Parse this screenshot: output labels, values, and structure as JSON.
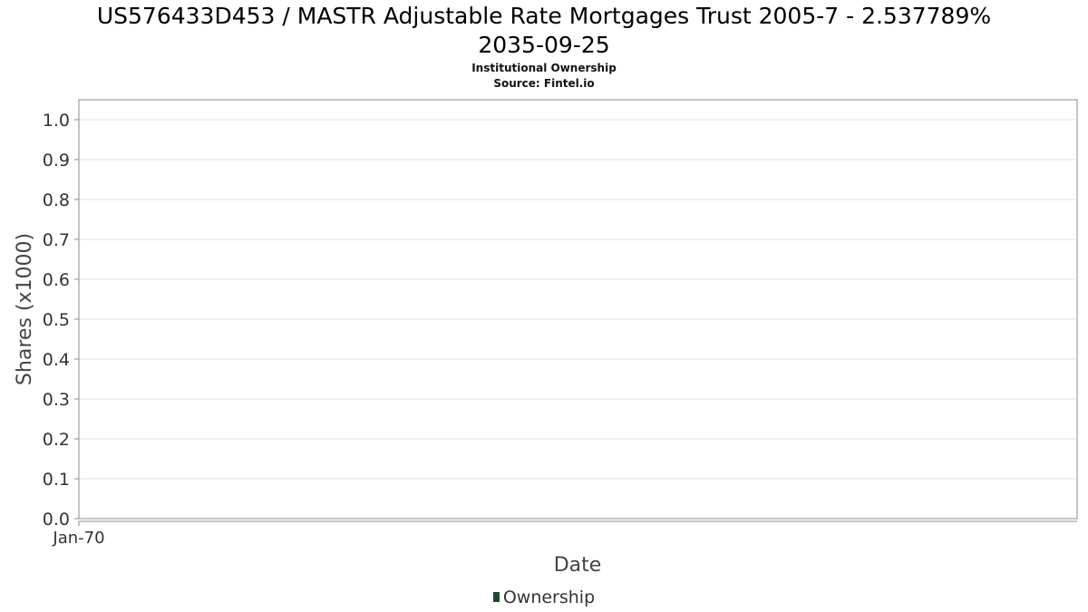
{
  "header": {
    "title_line1": "US576433D453 / MASTR Adjustable Rate Mortgages Trust 2005-7 - 2.537789%",
    "title_line2": "2035-09-25",
    "subtitle_line1": "Institutional Ownership",
    "subtitle_line2": "Source: Fintel.io"
  },
  "chart_data": {
    "type": "line",
    "title": "US576433D453 / MASTR Adjustable Rate Mortgages Trust 2005-7 - 2.537789% 2035-09-25",
    "subtitle": "Institutional Ownership\nSource: Fintel.io",
    "xlabel": "Date",
    "ylabel": "Shares (x1000)",
    "x_ticks": [
      "Jan-70"
    ],
    "y_ticks": [
      "0.0",
      "0.1",
      "0.2",
      "0.3",
      "0.4",
      "0.5",
      "0.6",
      "0.7",
      "0.8",
      "0.9",
      "1.0"
    ],
    "ylim": [
      0,
      1
    ],
    "grid": true,
    "legend_position": "bottom-center",
    "series": [
      {
        "name": "Ownership",
        "color": "#1b4a2a",
        "x": [],
        "values": []
      }
    ]
  },
  "legend": {
    "label": "Ownership",
    "color": "#1b4a2a"
  }
}
